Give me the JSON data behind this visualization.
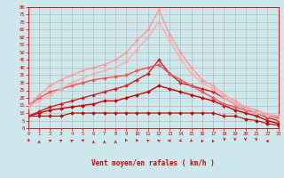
{
  "xlabel": "Vent moyen/en rafales ( km/h )",
  "bg_color": "#cce8ec",
  "grid_color": "#b0b0b0",
  "x_ticks": [
    0,
    1,
    2,
    3,
    4,
    5,
    6,
    7,
    8,
    9,
    10,
    11,
    12,
    13,
    14,
    15,
    16,
    17,
    18,
    19,
    20,
    21,
    22,
    23
  ],
  "y_ticks": [
    0,
    5,
    10,
    15,
    20,
    25,
    30,
    35,
    40,
    45,
    50,
    55,
    60,
    65,
    70,
    75,
    80
  ],
  "ylim": [
    0,
    80
  ],
  "xlim": [
    0,
    23
  ],
  "series": [
    {
      "x": [
        0,
        1,
        2,
        3,
        4,
        5,
        6,
        7,
        8,
        9,
        10,
        11,
        12,
        13,
        14,
        15,
        16,
        17,
        18,
        19,
        20,
        21,
        22,
        23
      ],
      "y": [
        8,
        8,
        8,
        8,
        10,
        10,
        10,
        10,
        10,
        10,
        10,
        10,
        10,
        10,
        10,
        10,
        10,
        10,
        8,
        8,
        6,
        5,
        3,
        2
      ],
      "color": "#cc0000",
      "lw": 0.8
    },
    {
      "x": [
        0,
        1,
        2,
        3,
        4,
        5,
        6,
        7,
        8,
        9,
        10,
        11,
        12,
        13,
        14,
        15,
        16,
        17,
        18,
        19,
        20,
        21,
        22,
        23
      ],
      "y": [
        8,
        10,
        12,
        13,
        14,
        15,
        16,
        18,
        18,
        20,
        22,
        24,
        28,
        26,
        24,
        22,
        20,
        18,
        15,
        12,
        10,
        8,
        5,
        3
      ],
      "color": "#cc0000",
      "lw": 1.0
    },
    {
      "x": [
        0,
        1,
        2,
        3,
        4,
        5,
        6,
        7,
        8,
        9,
        10,
        11,
        12,
        13,
        14,
        15,
        16,
        17,
        18,
        19,
        20,
        21,
        22,
        23
      ],
      "y": [
        8,
        11,
        14,
        16,
        18,
        20,
        22,
        24,
        26,
        28,
        32,
        36,
        45,
        36,
        30,
        28,
        26,
        24,
        20,
        16,
        13,
        10,
        7,
        5
      ],
      "color": "#cc2222",
      "lw": 1.0
    },
    {
      "x": [
        0,
        1,
        2,
        3,
        4,
        5,
        6,
        7,
        8,
        9,
        10,
        11,
        12,
        13,
        14,
        15,
        16,
        17,
        18,
        19,
        20,
        21,
        22,
        23
      ],
      "y": [
        15,
        20,
        24,
        26,
        28,
        30,
        32,
        33,
        34,
        35,
        38,
        40,
        42,
        36,
        32,
        28,
        24,
        20,
        16,
        14,
        12,
        10,
        8,
        7
      ],
      "color": "#ee5555",
      "lw": 1.0
    },
    {
      "x": [
        0,
        1,
        2,
        3,
        4,
        5,
        6,
        7,
        8,
        9,
        10,
        11,
        12,
        13,
        14,
        15,
        16,
        17,
        18,
        19,
        20,
        21,
        22,
        23
      ],
      "y": [
        15,
        22,
        28,
        32,
        35,
        38,
        40,
        42,
        45,
        50,
        58,
        65,
        78,
        62,
        50,
        40,
        32,
        28,
        22,
        18,
        14,
        12,
        9,
        8
      ],
      "color": "#ff9999",
      "lw": 1.0
    },
    {
      "x": [
        0,
        1,
        2,
        3,
        4,
        5,
        6,
        7,
        8,
        9,
        10,
        11,
        12,
        13,
        14,
        15,
        16,
        17,
        18,
        19,
        20,
        21,
        22,
        23
      ],
      "y": [
        14,
        18,
        22,
        26,
        30,
        33,
        36,
        38,
        40,
        44,
        52,
        60,
        70,
        58,
        46,
        36,
        30,
        26,
        20,
        16,
        13,
        10,
        8,
        6
      ],
      "color": "#ffaaaa",
      "lw": 1.0
    }
  ],
  "marker": "D",
  "markersize": 2.0,
  "arrows": [
    45,
    5,
    80,
    75,
    80,
    45,
    5,
    5,
    350,
    320,
    310,
    295,
    280,
    270,
    255,
    240,
    220,
    210,
    200,
    185,
    170,
    160,
    150,
    145
  ]
}
